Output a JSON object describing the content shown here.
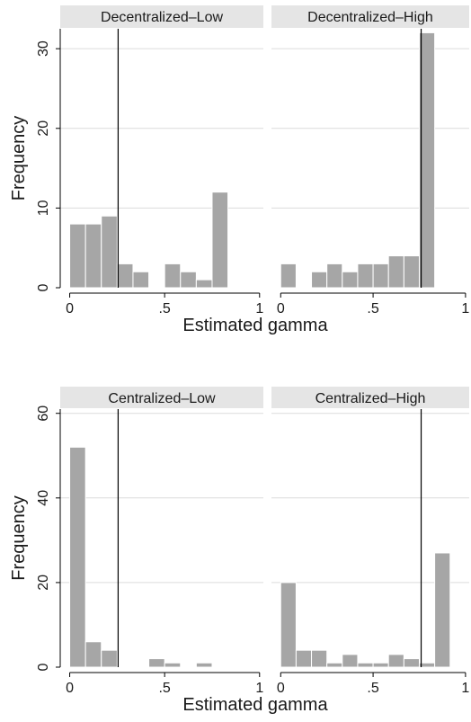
{
  "chart_data": [
    {
      "type": "bar",
      "panel_title": "Decentralized–Low",
      "xlabel": "Estimated gamma",
      "ylabel": "Frequency",
      "xlim": [
        -0.05,
        1.02
      ],
      "ylim": [
        0,
        32.5
      ],
      "xticks": [
        0,
        0.5,
        1
      ],
      "xtick_labels": [
        "0",
        ".5",
        "1"
      ],
      "yticks": [
        0,
        10,
        20,
        30
      ],
      "ytick_labels": [
        "0",
        "10",
        "20",
        "30"
      ],
      "bin_width": 0.0833,
      "bins": [
        {
          "x": 0.0,
          "count": 8
        },
        {
          "x": 0.0833,
          "count": 8
        },
        {
          "x": 0.1667,
          "count": 9
        },
        {
          "x": 0.25,
          "count": 3
        },
        {
          "x": 0.3333,
          "count": 2
        },
        {
          "x": 0.4167,
          "count": 0
        },
        {
          "x": 0.5,
          "count": 3
        },
        {
          "x": 0.5833,
          "count": 2
        },
        {
          "x": 0.6667,
          "count": 1
        },
        {
          "x": 0.75,
          "count": 12
        }
      ],
      "reference_line": 0.255,
      "grid": true
    },
    {
      "type": "bar",
      "panel_title": "Decentralized–High",
      "xlabel": "Estimated gamma",
      "ylabel": "Frequency",
      "xlim": [
        -0.05,
        1.02
      ],
      "ylim": [
        0,
        32.5
      ],
      "xticks": [
        0,
        0.5,
        1
      ],
      "xtick_labels": [
        "0",
        ".5",
        "1"
      ],
      "yticks": [
        0,
        10,
        20,
        30
      ],
      "ytick_labels": [
        "0",
        "10",
        "20",
        "30"
      ],
      "bin_width": 0.0833,
      "bins": [
        {
          "x": 0.0,
          "count": 3
        },
        {
          "x": 0.0833,
          "count": 0
        },
        {
          "x": 0.1667,
          "count": 2
        },
        {
          "x": 0.25,
          "count": 3
        },
        {
          "x": 0.3333,
          "count": 2
        },
        {
          "x": 0.4167,
          "count": 3
        },
        {
          "x": 0.5,
          "count": 3
        },
        {
          "x": 0.5833,
          "count": 4
        },
        {
          "x": 0.6667,
          "count": 4
        },
        {
          "x": 0.75,
          "count": 32
        }
      ],
      "reference_line": 0.76,
      "grid": true
    },
    {
      "type": "bar",
      "panel_title": "Centralized–Low",
      "xlabel": "Estimated gamma",
      "ylabel": "Frequency",
      "xlim": [
        -0.05,
        1.02
      ],
      "ylim": [
        0,
        61
      ],
      "xticks": [
        0,
        0.5,
        1
      ],
      "xtick_labels": [
        "0",
        ".5",
        "1"
      ],
      "yticks": [
        0,
        20,
        40,
        60
      ],
      "ytick_labels": [
        "0",
        "20",
        "40",
        "60"
      ],
      "bin_width": 0.0833,
      "bins": [
        {
          "x": 0.0,
          "count": 52
        },
        {
          "x": 0.0833,
          "count": 6
        },
        {
          "x": 0.1667,
          "count": 4
        },
        {
          "x": 0.25,
          "count": 0
        },
        {
          "x": 0.3333,
          "count": 0
        },
        {
          "x": 0.4167,
          "count": 2
        },
        {
          "x": 0.5,
          "count": 1
        },
        {
          "x": 0.5833,
          "count": 0
        },
        {
          "x": 0.6667,
          "count": 1
        },
        {
          "x": 0.75,
          "count": 0
        }
      ],
      "reference_line": 0.255,
      "grid": true
    },
    {
      "type": "bar",
      "panel_title": "Centralized–High",
      "xlabel": "Estimated gamma",
      "ylabel": "Frequency",
      "xlim": [
        -0.05,
        1.02
      ],
      "ylim": [
        0,
        61
      ],
      "xticks": [
        0,
        0.5,
        1
      ],
      "xtick_labels": [
        "0",
        ".5",
        "1"
      ],
      "yticks": [
        0,
        20,
        40,
        60
      ],
      "ytick_labels": [
        "0",
        "20",
        "40",
        "60"
      ],
      "bin_width": 0.0833,
      "bins": [
        {
          "x": 0.0,
          "count": 20
        },
        {
          "x": 0.0833,
          "count": 4
        },
        {
          "x": 0.1667,
          "count": 4
        },
        {
          "x": 0.25,
          "count": 1
        },
        {
          "x": 0.3333,
          "count": 3
        },
        {
          "x": 0.4167,
          "count": 1
        },
        {
          "x": 0.5,
          "count": 1
        },
        {
          "x": 0.5833,
          "count": 3
        },
        {
          "x": 0.6667,
          "count": 2
        },
        {
          "x": 0.75,
          "count": 1
        },
        {
          "x": 0.8333,
          "count": 27
        }
      ],
      "reference_line": 0.76,
      "grid": true
    }
  ]
}
